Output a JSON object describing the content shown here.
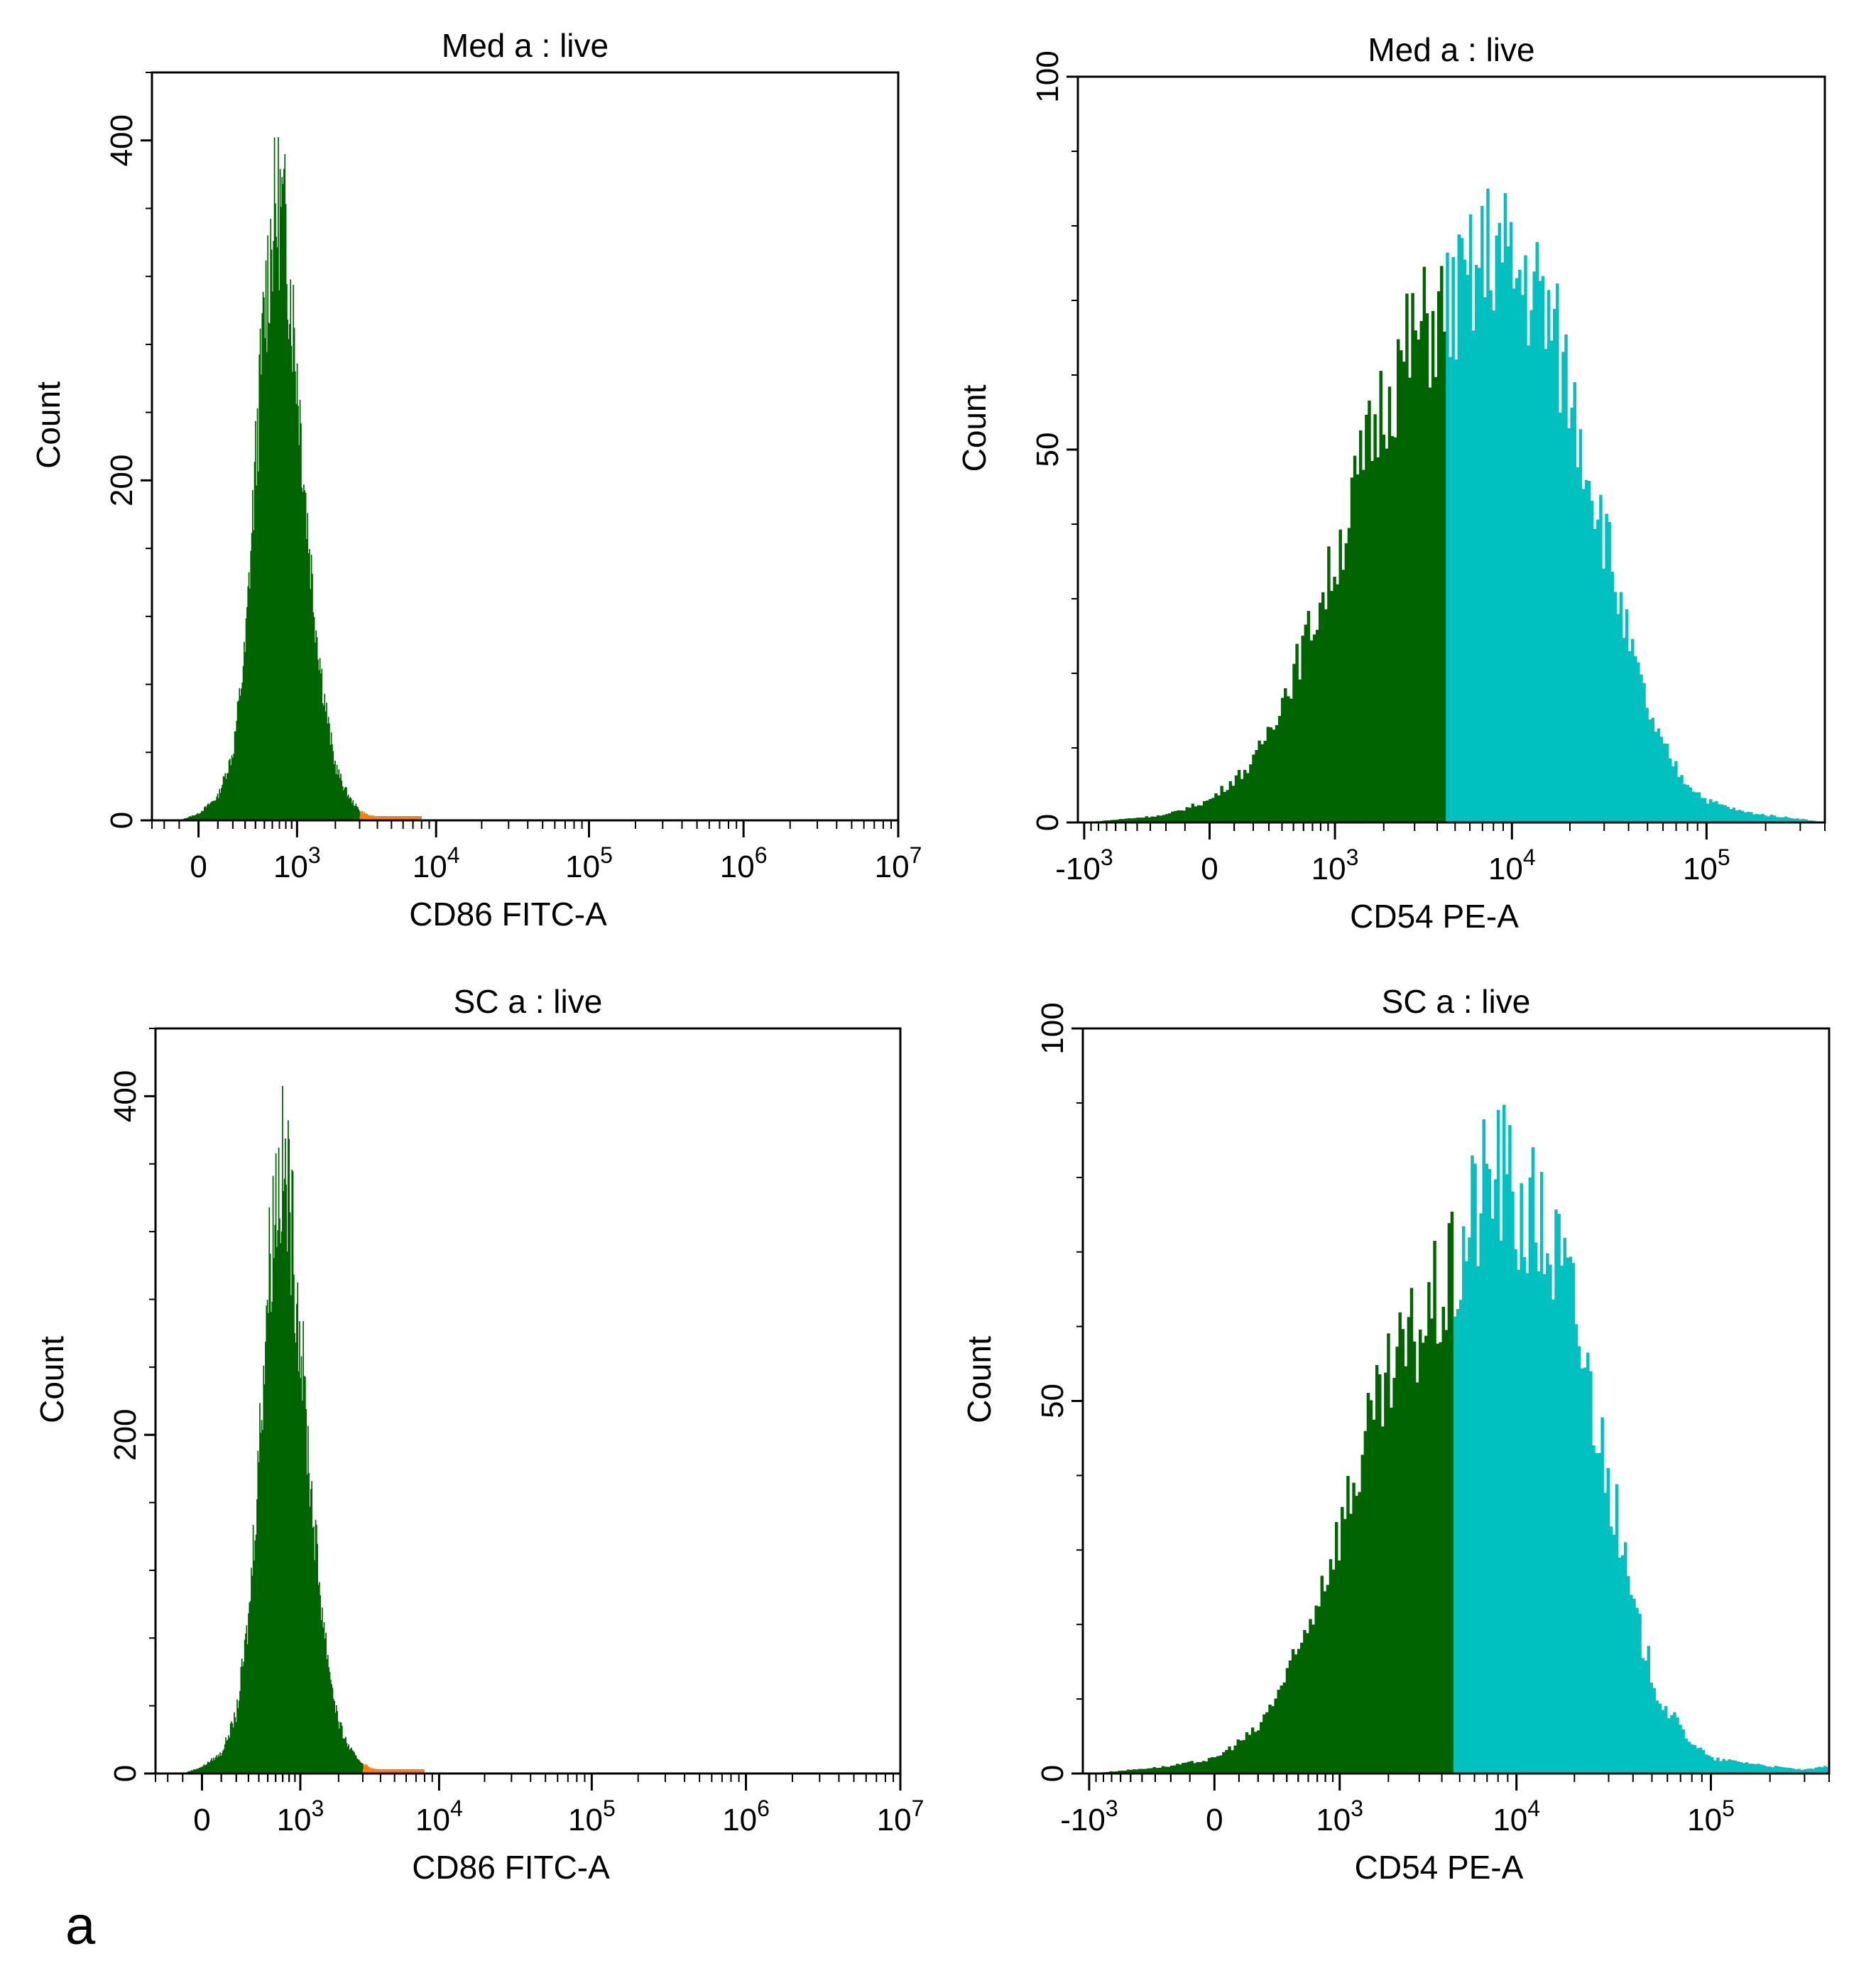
{
  "figure": {
    "panel_letter": "a"
  },
  "colors": {
    "dark_green": "#006400",
    "cyan": "#00C0C0",
    "orange": "#FF8000",
    "axis": "#000000"
  },
  "chart_data": [
    {
      "type": "histogram",
      "title": "Med a : live",
      "xlabel": "CD86 FITC-A",
      "ylabel": "Count",
      "x_scale": "biexponential",
      "xlim": [
        -300,
        10000000
      ],
      "ylim": [
        0,
        440
      ],
      "y_ticks": [
        0,
        200,
        400
      ],
      "x_ticks": [
        {
          "value": 0,
          "base": "0",
          "exp": ""
        },
        {
          "value": 1000,
          "base": "10",
          "exp": "3"
        },
        {
          "value": 10000,
          "base": "10",
          "exp": "4"
        },
        {
          "value": 100000,
          "base": "10",
          "exp": "5"
        },
        {
          "value": 1000000,
          "base": "10",
          "exp": "6"
        },
        {
          "value": 10000000,
          "base": "10",
          "exp": "7"
        }
      ],
      "gate_split": 3000,
      "series": [
        {
          "name": "CD86 FITC-A histogram",
          "x": [
            -100,
            0,
            100,
            200,
            300,
            400,
            500,
            600,
            700,
            800,
            900,
            1000,
            1200,
            1400,
            1600,
            1800,
            2000,
            2300,
            2600,
            3000,
            3500,
            4000,
            5000,
            6000,
            8000
          ],
          "values": [
            0,
            4,
            14,
            40,
            100,
            210,
            300,
            350,
            362,
            345,
            305,
            265,
            180,
            120,
            80,
            52,
            32,
            20,
            12,
            6,
            3,
            2,
            1,
            1,
            0
          ]
        }
      ]
    },
    {
      "type": "histogram",
      "title": "Med a : live",
      "xlabel": "CD54 PE-A",
      "ylabel": "Count",
      "x_scale": "biexponential",
      "xlim": [
        -1100,
        400000
      ],
      "ylim": [
        0,
        100
      ],
      "y_ticks": [
        0,
        50,
        100
      ],
      "x_ticks": [
        {
          "value": -1000,
          "base": "-10",
          "exp": "3"
        },
        {
          "value": 0,
          "base": "0",
          "exp": ""
        },
        {
          "value": 1000,
          "base": "10",
          "exp": "3"
        },
        {
          "value": 10000,
          "base": "10",
          "exp": "4"
        },
        {
          "value": 100000,
          "base": "10",
          "exp": "5"
        }
      ],
      "gate_split": 4500,
      "series": [
        {
          "name": "CD54 PE-A histogram",
          "x": [
            -1000,
            -500,
            -200,
            0,
            200,
            500,
            1000,
            1500,
            2000,
            3000,
            4500,
            6000,
            8000,
            10000,
            13000,
            16000,
            20000,
            25000,
            32000,
            40000,
            55000,
            75000,
            100000,
            150000,
            200000,
            300000,
            400000
          ],
          "values": [
            0,
            0.5,
            1,
            3,
            8,
            20,
            35,
            48,
            57,
            65,
            69,
            72,
            78,
            74,
            72,
            67,
            58,
            48,
            36,
            24,
            12,
            6,
            3,
            1.5,
            1,
            0.5,
            0
          ]
        }
      ]
    },
    {
      "type": "histogram",
      "title": "SC a : live",
      "xlabel": "CD86 FITC-A",
      "ylabel": "Count",
      "x_scale": "biexponential",
      "xlim": [
        -300,
        10000000
      ],
      "ylim": [
        0,
        440
      ],
      "y_ticks": [
        0,
        200,
        400
      ],
      "x_ticks": [
        {
          "value": 0,
          "base": "0",
          "exp": ""
        },
        {
          "value": 1000,
          "base": "10",
          "exp": "3"
        },
        {
          "value": 10000,
          "base": "10",
          "exp": "4"
        },
        {
          "value": 100000,
          "base": "10",
          "exp": "5"
        },
        {
          "value": 1000000,
          "base": "10",
          "exp": "6"
        },
        {
          "value": 10000000,
          "base": "10",
          "exp": "7"
        }
      ],
      "gate_split": 3000,
      "series": [
        {
          "name": "CD86 FITC-A histogram",
          "x": [
            -100,
            0,
            100,
            200,
            300,
            400,
            500,
            600,
            700,
            800,
            900,
            1000,
            1200,
            1400,
            1600,
            1800,
            2000,
            2300,
            2600,
            3000,
            3500,
            4000,
            5000,
            6000,
            8000
          ],
          "values": [
            0,
            4,
            12,
            35,
            90,
            190,
            290,
            345,
            358,
            340,
            300,
            260,
            175,
            118,
            78,
            50,
            30,
            18,
            11,
            6,
            3,
            2,
            1,
            1,
            0
          ]
        }
      ]
    },
    {
      "type": "histogram",
      "title": "SC a : live",
      "xlabel": "CD54 PE-A",
      "ylabel": "Count",
      "x_scale": "biexponential",
      "xlim": [
        -1100,
        400000
      ],
      "ylim": [
        0,
        100
      ],
      "y_ticks": [
        0,
        50,
        100
      ],
      "x_ticks": [
        {
          "value": -1000,
          "base": "-10",
          "exp": "3"
        },
        {
          "value": 0,
          "base": "0",
          "exp": ""
        },
        {
          "value": 1000,
          "base": "10",
          "exp": "3"
        },
        {
          "value": 10000,
          "base": "10",
          "exp": "4"
        },
        {
          "value": 100000,
          "base": "10",
          "exp": "5"
        }
      ],
      "gate_split": 4700,
      "series": [
        {
          "name": "CD54 PE-A histogram",
          "x": [
            -1000,
            -500,
            -200,
            0,
            200,
            500,
            1000,
            1500,
            2000,
            3000,
            4700,
            6000,
            8000,
            10000,
            13000,
            16000,
            20000,
            25000,
            32000,
            40000,
            55000,
            75000,
            100000,
            150000,
            200000,
            300000,
            400000
          ],
          "values": [
            0,
            0.5,
            1,
            2,
            6,
            16,
            33,
            45,
            52,
            60,
            67,
            76,
            82,
            76,
            74,
            70,
            62,
            50,
            36,
            22,
            10,
            5,
            2,
            1.5,
            1,
            0.5,
            1
          ]
        }
      ]
    }
  ]
}
